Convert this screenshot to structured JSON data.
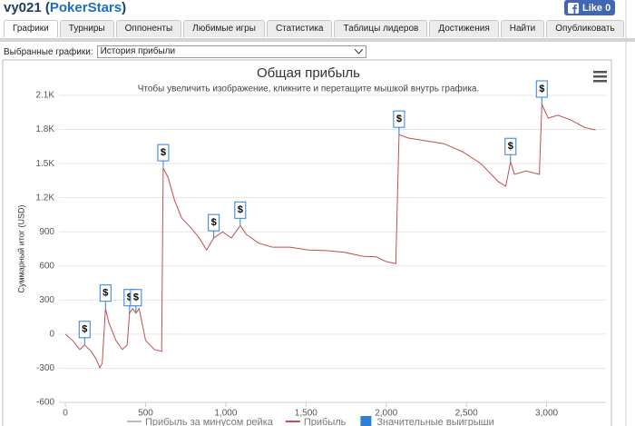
{
  "header": {
    "title_before": "vy021 (",
    "site": "PokerStars",
    "title_after": ")",
    "like": "Like 0"
  },
  "tabs": [
    "Графики",
    "Турниры",
    "Оппоненты",
    "Любимые игры",
    "Статистика",
    "Таблицы лидеров",
    "Достижения",
    "Найти",
    "Опубликовать"
  ],
  "selector": {
    "label": "Выбранные графики:",
    "value": "История прибыли"
  },
  "chart_data": {
    "type": "line",
    "title": "Общая прибыль",
    "subtitle": "Чтобы увеличить изображение, кликните и перетащите мышкой внутрь графика.",
    "y_label": "Суммарный итог (USD)",
    "xlim": [
      -40,
      3370
    ],
    "ylim": [
      -600,
      2100
    ],
    "xticks": [
      0,
      500,
      {
        "value": 1000,
        "label": "1,000"
      },
      {
        "value": 1500,
        "label": "1,500"
      },
      {
        "value": 2000,
        "label": "2,000"
      },
      {
        "value": 2500,
        "label": "2,500"
      },
      {
        "value": 3000,
        "label": "3,000"
      }
    ],
    "yticks": [
      -600,
      -300,
      0,
      300,
      600,
      900,
      {
        "value": 1200,
        "label": "1.2K"
      },
      {
        "value": 1500,
        "label": "1.5K"
      },
      {
        "value": 1800,
        "label": "1.8K"
      },
      {
        "value": 2100,
        "label": "2.1K"
      }
    ],
    "grid": true,
    "series": [
      {
        "name": "Прибыль за минусом рейка",
        "color": "#bbbbbb"
      },
      {
        "name": "Прибыль",
        "color": "#c0504d",
        "x": [
          0,
          45,
          90,
          120,
          160,
          190,
          215,
          230,
          250,
          270,
          315,
          355,
          385,
          400,
          420,
          440,
          460,
          500,
          555,
          600,
          610,
          640,
          680,
          725,
          780,
          835,
          880,
          925,
          980,
          1035,
          1090,
          1130,
          1205,
          1290,
          1400,
          1515,
          1625,
          1740,
          1855,
          1940,
          1995,
          2060,
          2080,
          2135,
          2250,
          2360,
          2475,
          2590,
          2700,
          2745,
          2775,
          2800,
          2870,
          2955,
          2970,
          3010,
          3070,
          3150,
          3235,
          3305
        ],
        "values": [
          0,
          -55,
          -135,
          -95,
          -150,
          -215,
          -295,
          -255,
          225,
          105,
          -55,
          -135,
          -95,
          185,
          225,
          185,
          225,
          -55,
          -135,
          -150,
          1460,
          1380,
          1180,
          1020,
          940,
          845,
          740,
          845,
          900,
          845,
          955,
          875,
          800,
          765,
          765,
          740,
          735,
          720,
          685,
          680,
          640,
          620,
          1755,
          1725,
          1700,
          1675,
          1605,
          1500,
          1340,
          1300,
          1515,
          1405,
          1435,
          1405,
          2020,
          1900,
          1925,
          1885,
          1820,
          1795
        ]
      },
      {
        "name": "Значительные выигрыши",
        "color": "#2f7ed8",
        "label": "$",
        "x": [
          120,
          250,
          400,
          440,
          610,
          925,
          1090,
          2080,
          2775,
          2970
        ],
        "values": [
          -95,
          225,
          185,
          185,
          1460,
          845,
          955,
          1755,
          1515,
          2020
        ]
      }
    ]
  }
}
